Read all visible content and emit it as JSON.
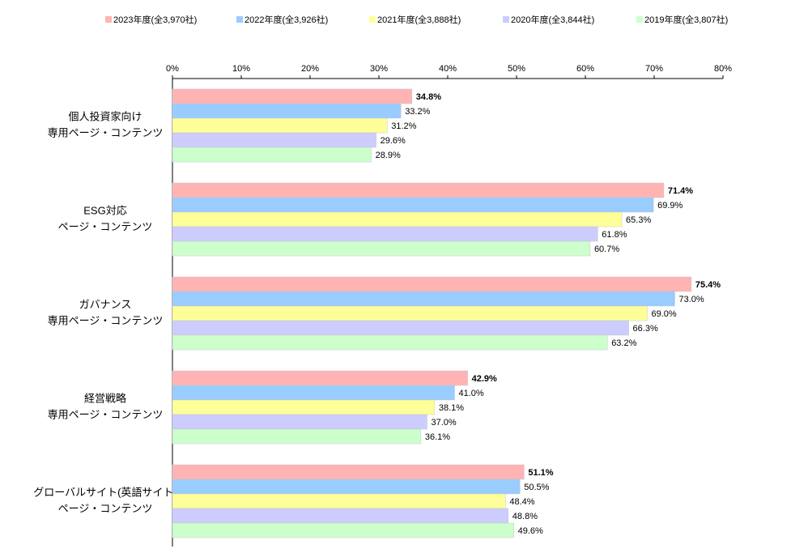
{
  "chart_data": {
    "type": "bar",
    "orientation": "horizontal",
    "categories": [
      [
        "個人投資家向け",
        "専用ページ・コンテンツ"
      ],
      [
        "ESG対応",
        "ページ・コンテンツ"
      ],
      [
        "ガバナンス",
        "専用ページ・コンテンツ"
      ],
      [
        "経営戦略",
        "専用ページ・コンテンツ"
      ],
      [
        "グローバルサイト(英語サイト)",
        "ページ・コンテンツ"
      ]
    ],
    "series": [
      {
        "name": "2023年度(全3,970社)",
        "color": "#ffb3b3",
        "values": [
          34.8,
          71.4,
          75.4,
          42.9,
          51.1
        ],
        "value_labels": [
          "34.8%",
          "71.4%",
          "75.4%",
          "42.9%",
          "51.1%"
        ]
      },
      {
        "name": "2022年度(全3,926社)",
        "color": "#99ccff",
        "values": [
          33.2,
          69.9,
          73.0,
          41.0,
          50.5
        ],
        "value_labels": [
          "33.2%",
          "69.9%",
          "73.0%",
          "41.0%",
          "50.5%"
        ]
      },
      {
        "name": "2021年度(全3,888社)",
        "color": "#ffff99",
        "values": [
          31.2,
          65.3,
          69.0,
          38.1,
          48.4
        ],
        "value_labels": [
          "31.2%",
          "65.3%",
          "69.0%",
          "38.1%",
          "48.4%"
        ]
      },
      {
        "name": "2020年度(全3,844社)",
        "color": "#ccccff",
        "values": [
          29.6,
          61.8,
          66.3,
          37.0,
          48.8
        ],
        "value_labels": [
          "29.6%",
          "61.8%",
          "66.3%",
          "37.0%",
          "48.8%"
        ]
      },
      {
        "name": "2019年度(全3,807社)",
        "color": "#ccffcc",
        "values": [
          28.9,
          60.7,
          63.2,
          36.1,
          49.6
        ],
        "value_labels": [
          "28.9%",
          "60.7%",
          "63.2%",
          "36.1%",
          "49.6%"
        ]
      }
    ],
    "xlim": [
      0,
      80
    ],
    "xticks": [
      {
        "value": 0,
        "label": "0%"
      },
      {
        "value": 10,
        "label": "10%"
      },
      {
        "value": 20,
        "label": "20%"
      },
      {
        "value": 30,
        "label": "30%"
      },
      {
        "value": 40,
        "label": "40%"
      },
      {
        "value": 50,
        "label": "50%"
      },
      {
        "value": 60,
        "label": "60%"
      },
      {
        "value": 70,
        "label": "70%"
      },
      {
        "value": 80,
        "label": "80%"
      }
    ],
    "legend": "top"
  }
}
